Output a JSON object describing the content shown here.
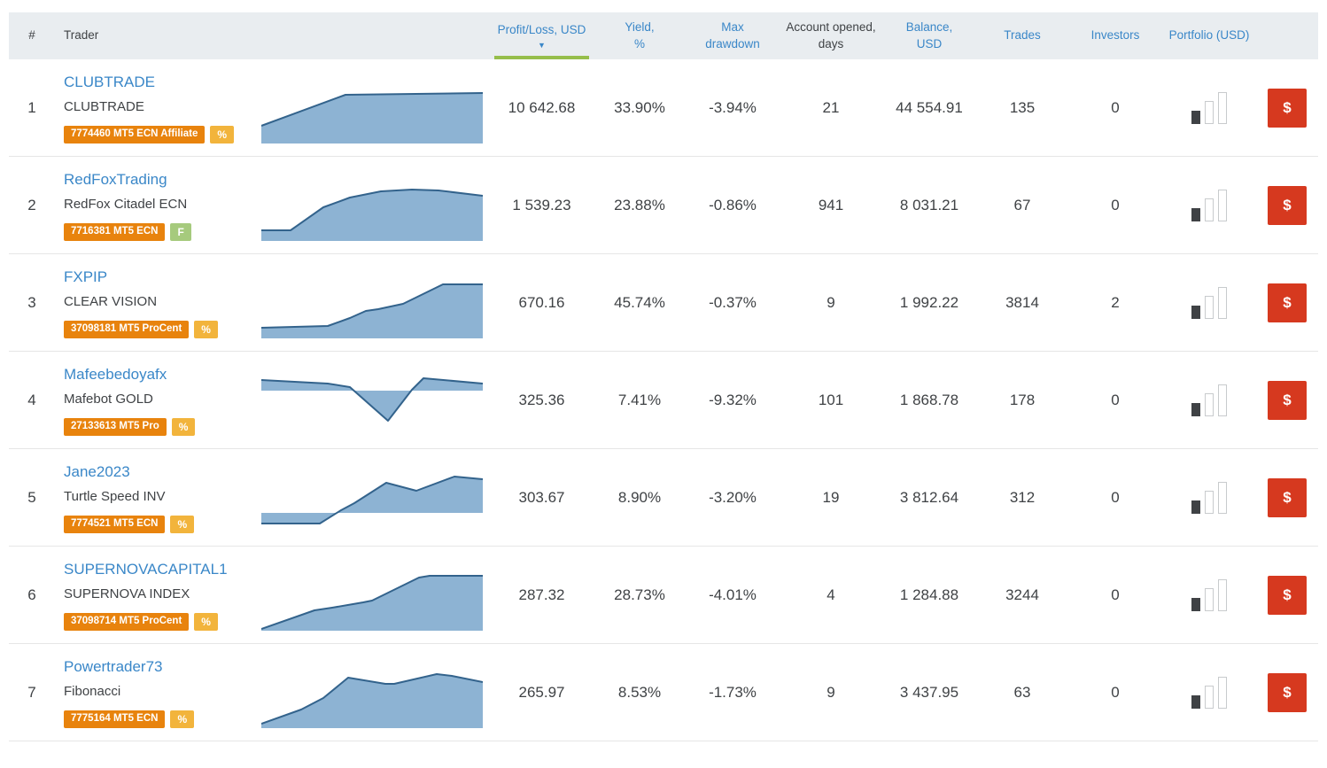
{
  "header": {
    "rank": "#",
    "trader": "Trader",
    "profit_loss": "Profit/Loss, USD",
    "sort_icon": "▼",
    "yield": "Yield,\n%",
    "max_drawdown": "Max\ndrawdown",
    "account_opened": "Account opened,\ndays",
    "balance": "Balance,\nUSD",
    "trades": "Trades",
    "investors": "Investors",
    "portfolio": "Portfolio (USD)"
  },
  "action": {
    "invest_label": "$"
  },
  "colors": {
    "link_blue": "#3a87c8",
    "text_dark": "#3f4245",
    "header_bg": "#e9edf0",
    "badge_orange": "#e8830d",
    "badge_amber": "#f2b43c",
    "badge_green": "#a6ca7d",
    "button_red": "#d6391f",
    "chart_fill": "#8db3d3",
    "chart_stroke": "#33638c",
    "sort_underline_green": "#96be4b"
  },
  "rows": [
    {
      "rank": "1",
      "name": "CLUBTRADE",
      "subtitle": "CLUBTRADE",
      "account_badge": "7774460 MT5 ECN Affiliate",
      "extra_badge": {
        "text": "%",
        "type": "percent"
      },
      "profit": "10 642.68",
      "yield": "33.90%",
      "drawdown": "-3.94%",
      "opened_days": "21",
      "balance": "44 554.91",
      "trades": "135",
      "investors": "0",
      "sparkline": {
        "baseline": 68,
        "points": [
          [
            0,
            48
          ],
          [
            95,
            13
          ],
          [
            250,
            11
          ]
        ]
      }
    },
    {
      "rank": "2",
      "name": "RedFoxTrading",
      "subtitle": "RedFox Citadel ECN",
      "account_badge": "7716381 MT5 ECN",
      "extra_badge": {
        "text": "F",
        "type": "partner"
      },
      "profit": "1 539.23",
      "yield": "23.88%",
      "drawdown": "-0.86%",
      "opened_days": "941",
      "balance": "8 031.21",
      "trades": "67",
      "investors": "0",
      "sparkline": {
        "baseline": 68,
        "points": [
          [
            0,
            56
          ],
          [
            33,
            56
          ],
          [
            70,
            30
          ],
          [
            100,
            19
          ],
          [
            135,
            12
          ],
          [
            170,
            10
          ],
          [
            200,
            11
          ],
          [
            250,
            17
          ]
        ]
      }
    },
    {
      "rank": "3",
      "name": "FXPIP",
      "subtitle": "CLEAR VISION",
      "account_badge": "37098181 MT5 ProCent",
      "extra_badge": {
        "text": "%",
        "type": "percent"
      },
      "profit": "670.16",
      "yield": "45.74%",
      "drawdown": "-0.37%",
      "opened_days": "9",
      "balance": "1 992.22",
      "trades": "3814",
      "investors": "2",
      "sparkline": {
        "baseline": 68,
        "points": [
          [
            0,
            56
          ],
          [
            75,
            54
          ],
          [
            100,
            45
          ],
          [
            118,
            37
          ],
          [
            132,
            35
          ],
          [
            160,
            29
          ],
          [
            205,
            7
          ],
          [
            250,
            7
          ]
        ]
      }
    },
    {
      "rank": "4",
      "name": "Mafeebedoyafx",
      "subtitle": "Mafebot GOLD",
      "account_badge": "27133613 MT5 Pro",
      "extra_badge": {
        "text": "%",
        "type": "percent"
      },
      "profit": "325.36",
      "yield": "7.41%",
      "drawdown": "-9.32%",
      "opened_days": "101",
      "balance": "1 868.78",
      "trades": "178",
      "investors": "0",
      "sparkline": {
        "baseline": 17,
        "points": [
          [
            0,
            5
          ],
          [
            75,
            9
          ],
          [
            100,
            13
          ],
          [
            143,
            51
          ],
          [
            170,
            16
          ],
          [
            183,
            3
          ],
          [
            250,
            9
          ]
        ]
      }
    },
    {
      "rank": "5",
      "name": "Jane2023",
      "subtitle": "Turtle Speed INV",
      "account_badge": "7774521 MT5 ECN",
      "extra_badge": {
        "text": "%",
        "type": "percent"
      },
      "profit": "303.67",
      "yield": "8.90%",
      "drawdown": "-3.20%",
      "opened_days": "19",
      "balance": "3 812.64",
      "trades": "312",
      "investors": "0",
      "sparkline": {
        "baseline": 45,
        "points": [
          [
            0,
            57
          ],
          [
            66,
            57
          ],
          [
            90,
            42
          ],
          [
            105,
            34
          ],
          [
            141,
            11
          ],
          [
            175,
            20
          ],
          [
            218,
            4
          ],
          [
            250,
            7
          ]
        ]
      }
    },
    {
      "rank": "6",
      "name": "SUPERNOVACAPITAL1",
      "subtitle": "SUPERNOVA INDEX",
      "account_badge": "37098714 MT5 ProCent",
      "extra_badge": {
        "text": "%",
        "type": "percent"
      },
      "profit": "287.32",
      "yield": "28.73%",
      "drawdown": "-4.01%",
      "opened_days": "4",
      "balance": "1 284.88",
      "trades": "3244",
      "investors": "0",
      "sparkline": {
        "baseline": 68,
        "points": [
          [
            0,
            66
          ],
          [
            60,
            45
          ],
          [
            80,
            42
          ],
          [
            115,
            36
          ],
          [
            125,
            34
          ],
          [
            178,
            8
          ],
          [
            190,
            6
          ],
          [
            250,
            6
          ]
        ]
      }
    },
    {
      "rank": "7",
      "name": "Powertrader73",
      "subtitle": "Fibonacci",
      "account_badge": "7775164 MT5 ECN",
      "extra_badge": {
        "text": "%",
        "type": "percent"
      },
      "profit": "265.97",
      "yield": "8.53%",
      "drawdown": "-1.73%",
      "opened_days": "9",
      "balance": "3 437.95",
      "trades": "63",
      "investors": "0",
      "sparkline": {
        "baseline": 68,
        "points": [
          [
            0,
            63
          ],
          [
            45,
            47
          ],
          [
            70,
            34
          ],
          [
            98,
            11
          ],
          [
            140,
            18
          ],
          [
            150,
            18
          ],
          [
            198,
            7
          ],
          [
            215,
            9
          ],
          [
            250,
            16
          ]
        ]
      }
    }
  ]
}
